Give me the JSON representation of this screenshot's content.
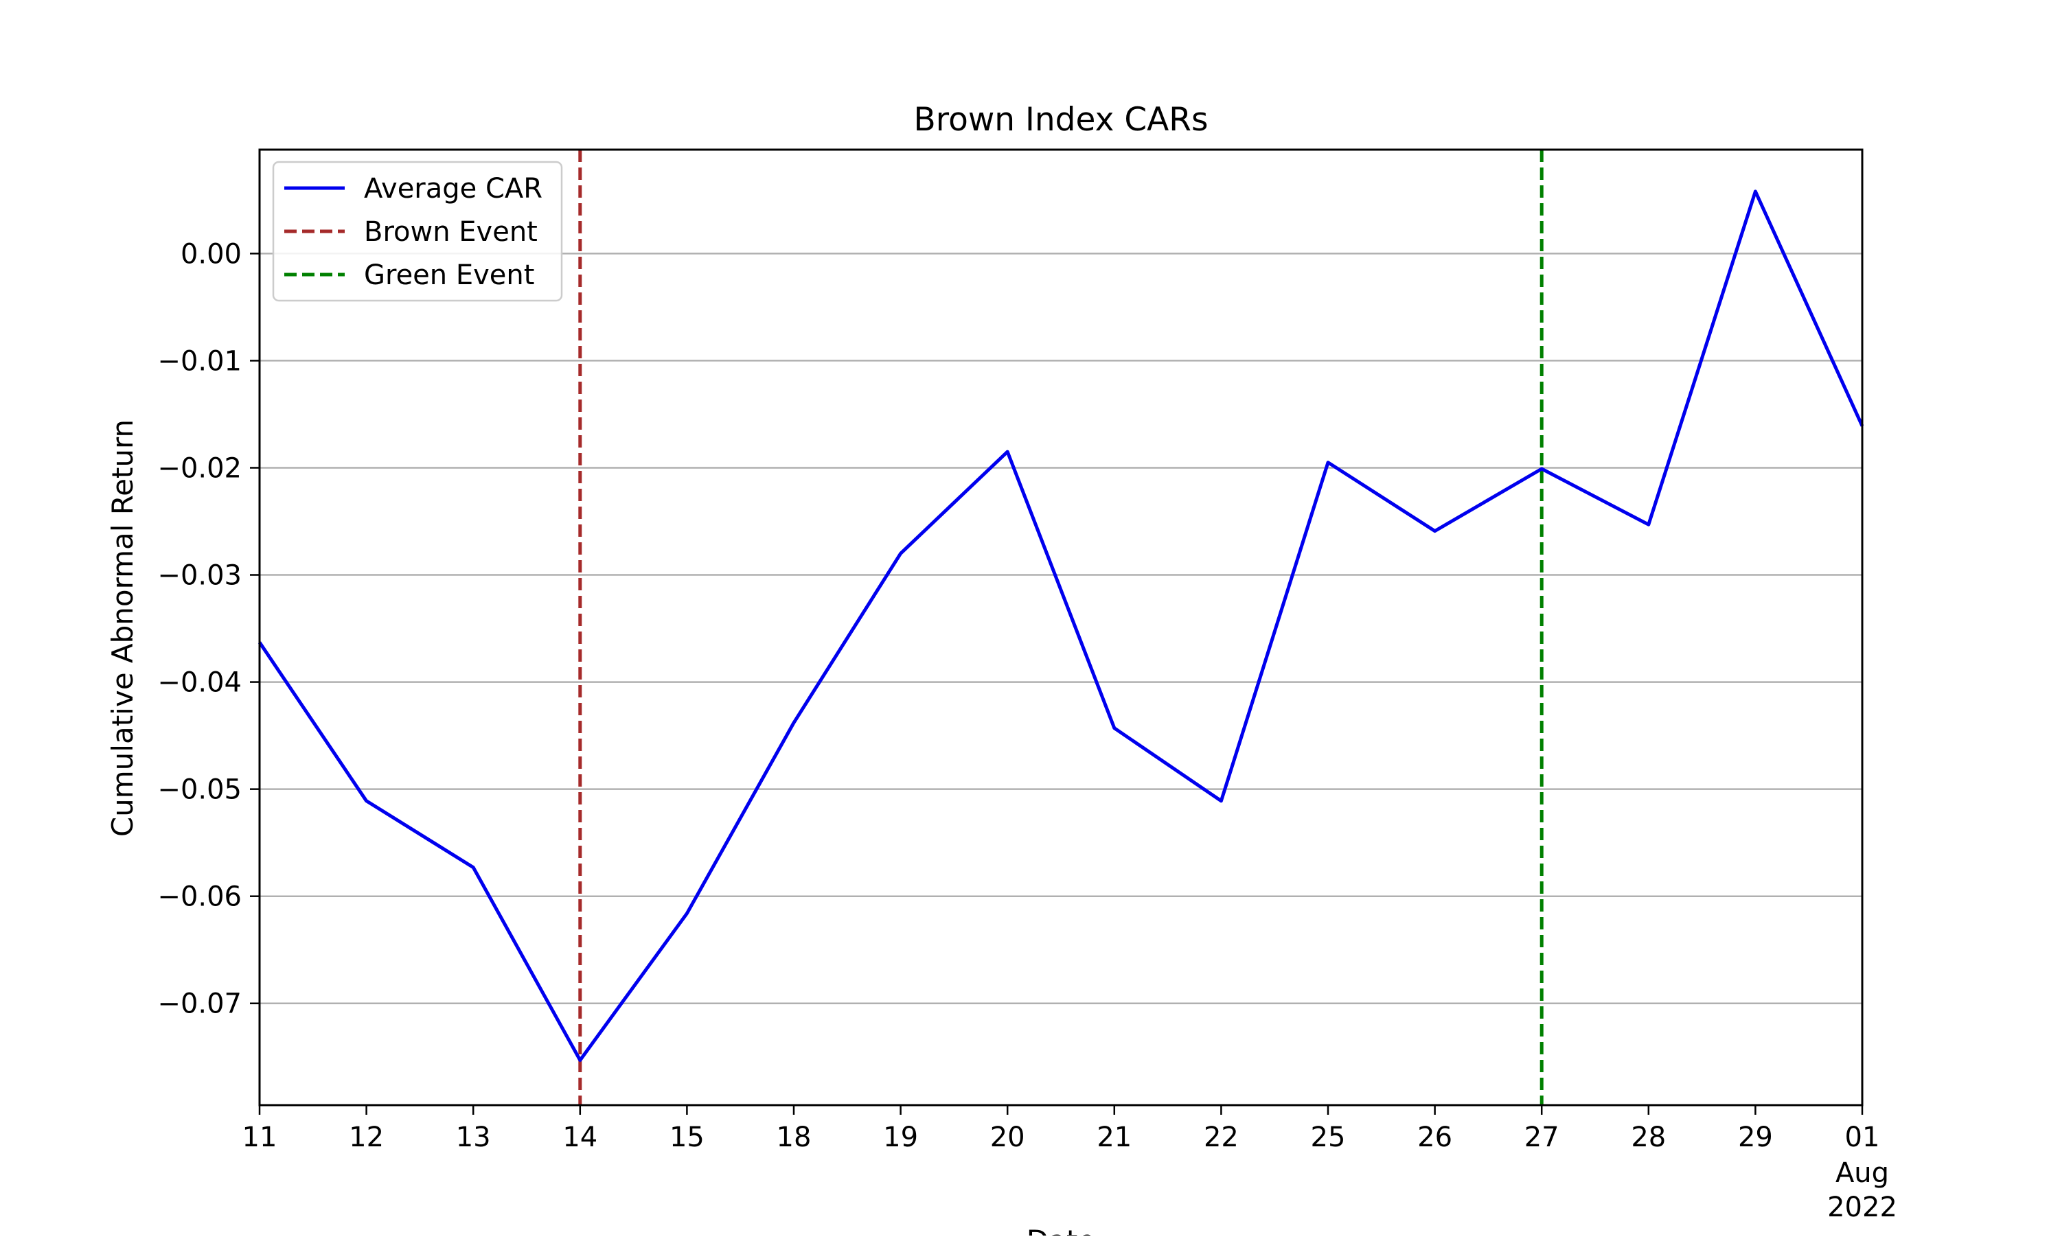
{
  "chart_data": {
    "type": "line",
    "title": "Brown Index CARs",
    "xlabel": "Date",
    "ylabel": "Cumulative Abnormal Return",
    "x": [
      "11",
      "12",
      "13",
      "14",
      "15",
      "18",
      "19",
      "20",
      "21",
      "22",
      "25",
      "26",
      "27",
      "28",
      "29",
      "01"
    ],
    "x_dates": [
      "2022-07-11",
      "2022-07-12",
      "2022-07-13",
      "2022-07-14",
      "2022-07-15",
      "2022-07-18",
      "2022-07-19",
      "2022-07-20",
      "2022-07-21",
      "2022-07-22",
      "2022-07-25",
      "2022-07-26",
      "2022-07-27",
      "2022-07-28",
      "2022-07-29",
      "2022-08-01"
    ],
    "x_extra_label": {
      "index": 15,
      "lines": [
        "Aug",
        "2022"
      ]
    },
    "series": [
      {
        "name": "Average CAR",
        "color": "#0000ee",
        "values": [
          -0.0363,
          -0.0511,
          -0.0573,
          -0.0753,
          -0.0616,
          -0.0438,
          -0.028,
          -0.0185,
          -0.0443,
          -0.0511,
          -0.0195,
          -0.0259,
          -0.0201,
          -0.0253,
          0.0058,
          -0.0161
        ]
      }
    ],
    "events": [
      {
        "name": "Brown Event",
        "x_index": 3,
        "color": "#a52a2a"
      },
      {
        "name": "Green Event",
        "x_index": 12,
        "color": "#008000"
      }
    ],
    "ylim": [
      -0.0795,
      0.0097
    ],
    "yticks": [
      0.0,
      -0.01,
      -0.02,
      -0.03,
      -0.04,
      -0.05,
      -0.06,
      -0.07
    ],
    "ytick_labels": [
      "0.00",
      "−0.01",
      "−0.02",
      "−0.03",
      "−0.04",
      "−0.05",
      "−0.06",
      "−0.07"
    ],
    "grid": "horizontal",
    "legend_position": "top-left"
  }
}
